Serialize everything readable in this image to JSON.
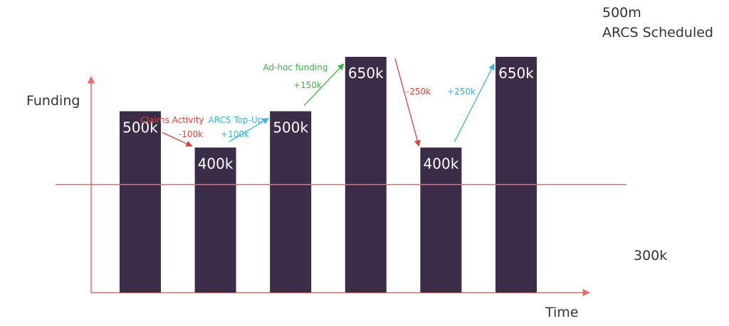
{
  "chart_data": {
    "type": "bar",
    "title": "",
    "xlabel": "Time",
    "ylabel": "Funding",
    "categories": [
      "",
      "",
      "",
      "",
      "",
      ""
    ],
    "values": [
      500,
      400,
      500,
      650,
      400,
      650
    ],
    "value_labels": [
      "500k",
      "400k",
      "500k",
      "650k",
      "400k",
      "650k"
    ],
    "ylim": [
      0,
      650
    ],
    "grid": false,
    "threshold": {
      "value": 300,
      "label": "300k"
    },
    "top_note": {
      "line1": "500m",
      "line2": "ARCS Scheduled"
    },
    "annotations": [
      {
        "from": 0,
        "to": 1,
        "title": "Claims Activity",
        "delta": "-100k",
        "color": "#e0403a"
      },
      {
        "from": 1,
        "to": 2,
        "title": "ARCS Top-Up",
        "delta": "+100k",
        "color": "#3bb0e6"
      },
      {
        "from": 2,
        "to": 3,
        "title": "Ad-hoc funding",
        "delta": "+150k",
        "color": "#3fb04a"
      },
      {
        "from": 3,
        "to": 4,
        "title": "",
        "delta": "-250k",
        "color": "#e0403a"
      },
      {
        "from": 4,
        "to": 5,
        "title": "",
        "delta": "+250k",
        "color": "#3bb0e6"
      }
    ],
    "colors": {
      "bar": "#3b2c47",
      "axis": "#e86a6a",
      "threshold": "#e86a6a"
    }
  }
}
